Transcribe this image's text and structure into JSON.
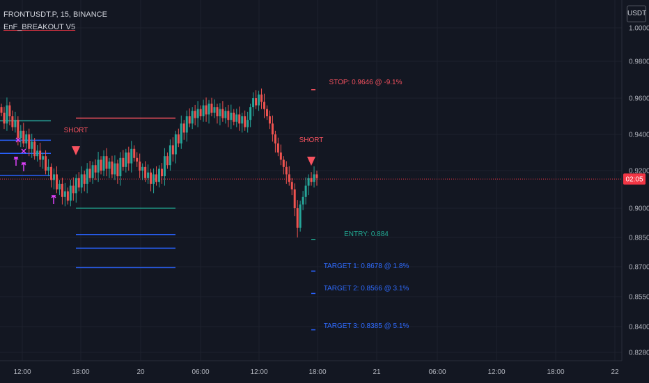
{
  "header": {
    "symbol": "FRONTUSDT.P, 15, BINANCE",
    "indicator": "EnF_BREAKOUT V5"
  },
  "currency_button": "USDT",
  "colors": {
    "background": "#131722",
    "grid": "#1e222d",
    "up": "#26a69a",
    "down": "#ef5350",
    "stop": "#f7525f",
    "entry": "#22ab94",
    "target": "#2962ff",
    "marker": "#e040fb",
    "price_label": "#f23645"
  },
  "chart_data": {
    "type": "candlestick",
    "ylim": [
      0.8265,
      1.0035
    ],
    "x_ticks": [
      "12:00",
      "18:00",
      "20",
      "06:00",
      "12:00",
      "18:00",
      "21",
      "06:00",
      "12:00",
      "18:00",
      "22"
    ],
    "y_ticks": [
      "1.0000",
      "0.9800",
      "0.9600",
      "0.9400",
      "0.9200",
      "0.9000",
      "0.8850",
      "0.8700",
      "0.8550",
      "0.8400",
      "0.8280"
    ],
    "current_price_label": "02:05",
    "current_price": 0.9155,
    "signals": [
      "SHORT",
      "SHORT"
    ],
    "stop_label": "STOP: 0.9646 @ -9.1%",
    "entry_label": "ENTRY: 0.884",
    "target_labels": [
      "TARGET 1: 0.8678 @ 1.8%",
      "TARGET 2: 0.8566 @ 3.1%",
      "TARGET 3: 0.8385 @ 5.1%"
    ],
    "levels": {
      "first_trade": {
        "stop": 0.949,
        "entry": 0.9,
        "targets": [
          0.8865,
          0.8795,
          0.8695
        ]
      },
      "second_trade": {
        "stop": 0.9646,
        "entry": 0.884,
        "targets": [
          0.8678,
          0.8566,
          0.8385
        ]
      }
    },
    "candles_close": [
      0.952,
      0.946,
      0.956,
      0.95,
      0.944,
      0.948,
      0.938,
      0.942,
      0.935,
      0.94,
      0.932,
      0.936,
      0.928,
      0.931,
      0.926,
      0.928,
      0.92,
      0.922,
      0.915,
      0.918,
      0.91,
      0.913,
      0.906,
      0.909,
      0.904,
      0.912,
      0.908,
      0.916,
      0.911,
      0.918,
      0.913,
      0.921,
      0.916,
      0.923,
      0.919,
      0.926,
      0.92,
      0.928,
      0.921,
      0.925,
      0.918,
      0.924,
      0.917,
      0.927,
      0.922,
      0.93,
      0.924,
      0.932,
      0.927,
      0.925,
      0.92,
      0.922,
      0.916,
      0.919,
      0.913,
      0.918,
      0.914,
      0.921,
      0.917,
      0.928,
      0.923,
      0.934,
      0.929,
      0.94,
      0.935,
      0.946,
      0.941,
      0.95,
      0.946,
      0.953,
      0.949,
      0.954,
      0.95,
      0.956,
      0.951,
      0.957,
      0.952,
      0.955,
      0.95,
      0.954,
      0.949,
      0.953,
      0.948,
      0.952,
      0.947,
      0.951,
      0.946,
      0.95,
      0.944,
      0.948,
      0.955,
      0.96,
      0.956,
      0.962,
      0.958,
      0.954,
      0.95,
      0.946,
      0.94,
      0.935,
      0.93,
      0.926,
      0.922,
      0.918,
      0.914,
      0.91,
      0.9,
      0.89,
      0.902,
      0.906,
      0.912,
      0.916,
      0.914,
      0.918,
      0.916
    ]
  }
}
